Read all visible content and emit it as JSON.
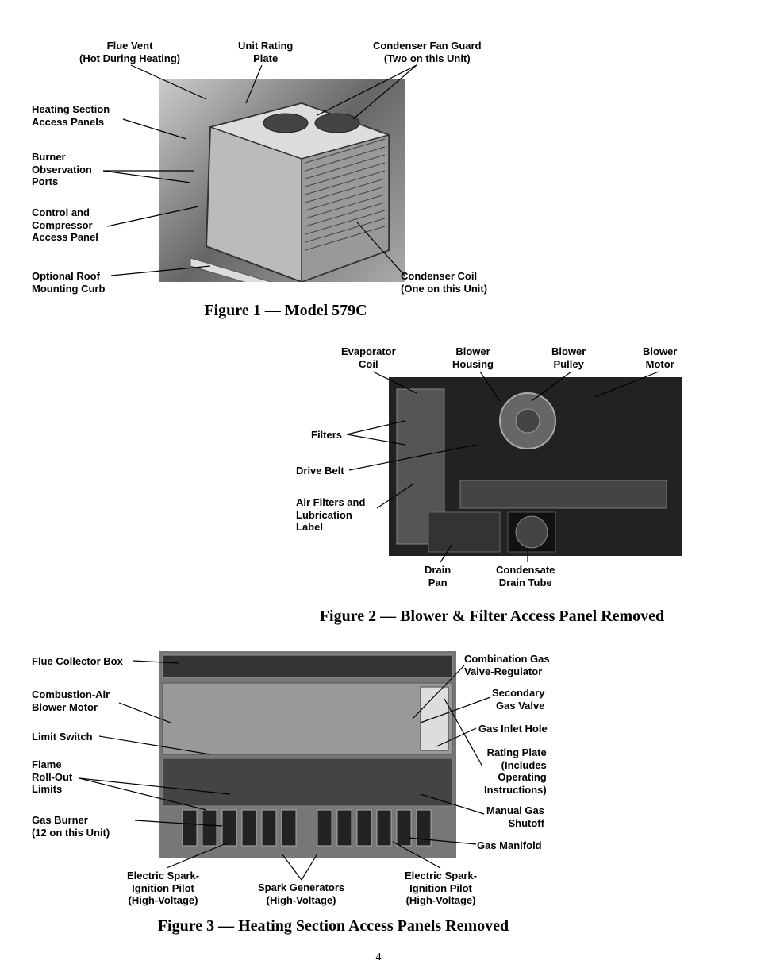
{
  "page_number": "4",
  "figures": {
    "fig1": {
      "caption": "Figure 1 — Model 579C",
      "image_bg": "#888888",
      "labels": {
        "flue_vent": "Flue Vent\n(Hot During Heating)",
        "unit_rating_plate": "Unit Rating\nPlate",
        "condenser_fan_guard": "Condenser Fan Guard\n(Two on this Unit)",
        "heating_panels": "Heating Section\nAccess Panels",
        "burner_ports": "Burner\nObservation\nPorts",
        "control_panel": "Control and\nCompressor\nAccess Panel",
        "roof_curb": "Optional Roof\nMounting Curb",
        "condenser_coil": "Condenser Coil\n(One on this Unit)"
      },
      "caption_fontsize": 20,
      "label_fontsize": 13,
      "label_fontweight": "bold"
    },
    "fig2": {
      "caption": "Figure 2 — Blower & Filter Access Panel Removed",
      "image_bg": "#222222",
      "labels": {
        "evaporator_coil": "Evaporator\nCoil",
        "blower_housing": "Blower\nHousing",
        "blower_pulley": "Blower\nPulley",
        "blower_motor": "Blower\nMotor",
        "filters": "Filters",
        "drive_belt": "Drive Belt",
        "air_filters_label": "Air Filters and\nLubrication\nLabel",
        "drain_pan": "Drain\nPan",
        "condensate_tube": "Condensate\nDrain Tube"
      },
      "caption_fontsize": 20
    },
    "fig3": {
      "caption": "Figure 3 — Heating Section Access Panels Removed",
      "image_bg": "#777777",
      "labels": {
        "flue_collector": "Flue Collector Box",
        "combustion_motor": "Combustion-Air\nBlower Motor",
        "limit_switch": "Limit Switch",
        "flame_limits": "Flame\nRoll-Out\nLimits",
        "gas_burner": "Gas Burner\n(12 on this Unit)",
        "spark_pilot_left": "Electric Spark-\nIgnition Pilot\n(High-Voltage)",
        "spark_generators": "Spark Generators\n(High-Voltage)",
        "spark_pilot_right": "Electric Spark-\nIgnition Pilot\n(High-Voltage)",
        "combo_valve": "Combination Gas\nValve-Regulator",
        "secondary_valve": "Secondary\nGas Valve",
        "gas_inlet": "Gas Inlet Hole",
        "rating_plate": "Rating Plate\n(Includes\nOperating\nInstructions)",
        "manual_shutoff": "Manual Gas\nShutoff",
        "gas_manifold": "Gas Manifold"
      },
      "caption_fontsize": 20
    }
  },
  "colors": {
    "text": "#000000",
    "bg": "#ffffff",
    "leader": "#000000",
    "image_dark": "#333333",
    "image_mid": "#888888"
  }
}
